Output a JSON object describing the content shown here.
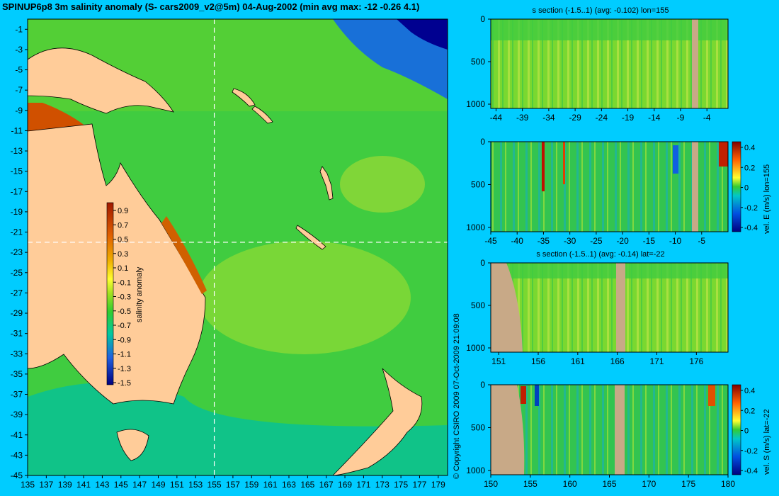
{
  "title": "SPINUP6p8 3m salinity anomaly (S- cars2009_v2@5m) 04-Aug-2002 (min avg max: -12 -0.26 4.1)",
  "copyright": "© Copyright CSIRO 2009   07-Oct-2009 21:09:08",
  "colors": {
    "background": "#00ccff",
    "land": "#ffcc99",
    "section_land": "#c8a987",
    "ocean_base": "#33cc33"
  },
  "chart_data": [
    {
      "type": "heatmap",
      "title": "SPINUP6p8 3m salinity anomaly (S- cars2009_v2@5m) 04-Aug-2002 (min avg max: -12 -0.26 4.1)",
      "xlabel": "",
      "ylabel": "",
      "x_ticks": [
        135,
        137,
        139,
        141,
        143,
        145,
        147,
        149,
        151,
        153,
        155,
        157,
        159,
        161,
        163,
        165,
        167,
        169,
        171,
        173,
        175,
        177,
        179
      ],
      "y_ticks": [
        -1,
        -3,
        -5,
        -7,
        -9,
        -11,
        -13,
        -15,
        -17,
        -19,
        -21,
        -23,
        -25,
        -27,
        -29,
        -31,
        -33,
        -35,
        -37,
        -39,
        -41,
        -43,
        -45
      ],
      "xlim": [
        135,
        180
      ],
      "ylim": [
        -45,
        0
      ],
      "section_lines": {
        "lon": 155,
        "lat": -22
      },
      "colorbar": {
        "label": "salinity anomaly",
        "ticks": [
          "0.9",
          "0.7",
          "0.5",
          "0.3",
          "0.1",
          "-0.1",
          "-0.3",
          "-0.5",
          "-0.7",
          "-0.9",
          "-1.1",
          "-1.3",
          "-1.5"
        ]
      }
    },
    {
      "type": "heatmap",
      "title": "s section (-1.5..1) (avg: -0.102) lon=155",
      "x_ticks": [
        "-44",
        "-39",
        "-34",
        "-29",
        "-24",
        "-19",
        "-14",
        "-9",
        "-4"
      ],
      "y_ticks": [
        "0",
        "500",
        "1000"
      ],
      "xlim": [
        -45,
        0
      ],
      "ylim": [
        1050,
        0
      ]
    },
    {
      "type": "heatmap",
      "title": "",
      "ylabel_right": "vel. E (m/s) lon=155",
      "x_ticks": [
        "-45",
        "-40",
        "-35",
        "-30",
        "-25",
        "-20",
        "-15",
        "-10",
        "-5"
      ],
      "y_ticks": [
        "0",
        "500",
        "1000"
      ],
      "xlim": [
        -45,
        0
      ],
      "ylim": [
        1050,
        0
      ],
      "colorbar": {
        "ticks": [
          "0.4",
          "0.2",
          "0",
          "-0.2",
          "-0.4"
        ]
      }
    },
    {
      "type": "heatmap",
      "title": "s section (-1.5..1) (avg: -0.14) lat=-22",
      "x_ticks": [
        "151",
        "156",
        "161",
        "166",
        "171",
        "176"
      ],
      "y_ticks": [
        "0",
        "500",
        "1000"
      ],
      "xlim": [
        150,
        180
      ],
      "ylim": [
        1050,
        0
      ]
    },
    {
      "type": "heatmap",
      "title": "",
      "ylabel_right": "vel. S (m/s) lat=-22",
      "x_ticks": [
        "150",
        "155",
        "160",
        "165",
        "170",
        "175",
        "180"
      ],
      "y_ticks": [
        "0",
        "500",
        "1000"
      ],
      "xlim": [
        150,
        180
      ],
      "ylim": [
        1050,
        0
      ],
      "colorbar": {
        "ticks": [
          "0.4",
          "0.2",
          "0",
          "-0.2",
          "-0.4"
        ]
      }
    }
  ]
}
